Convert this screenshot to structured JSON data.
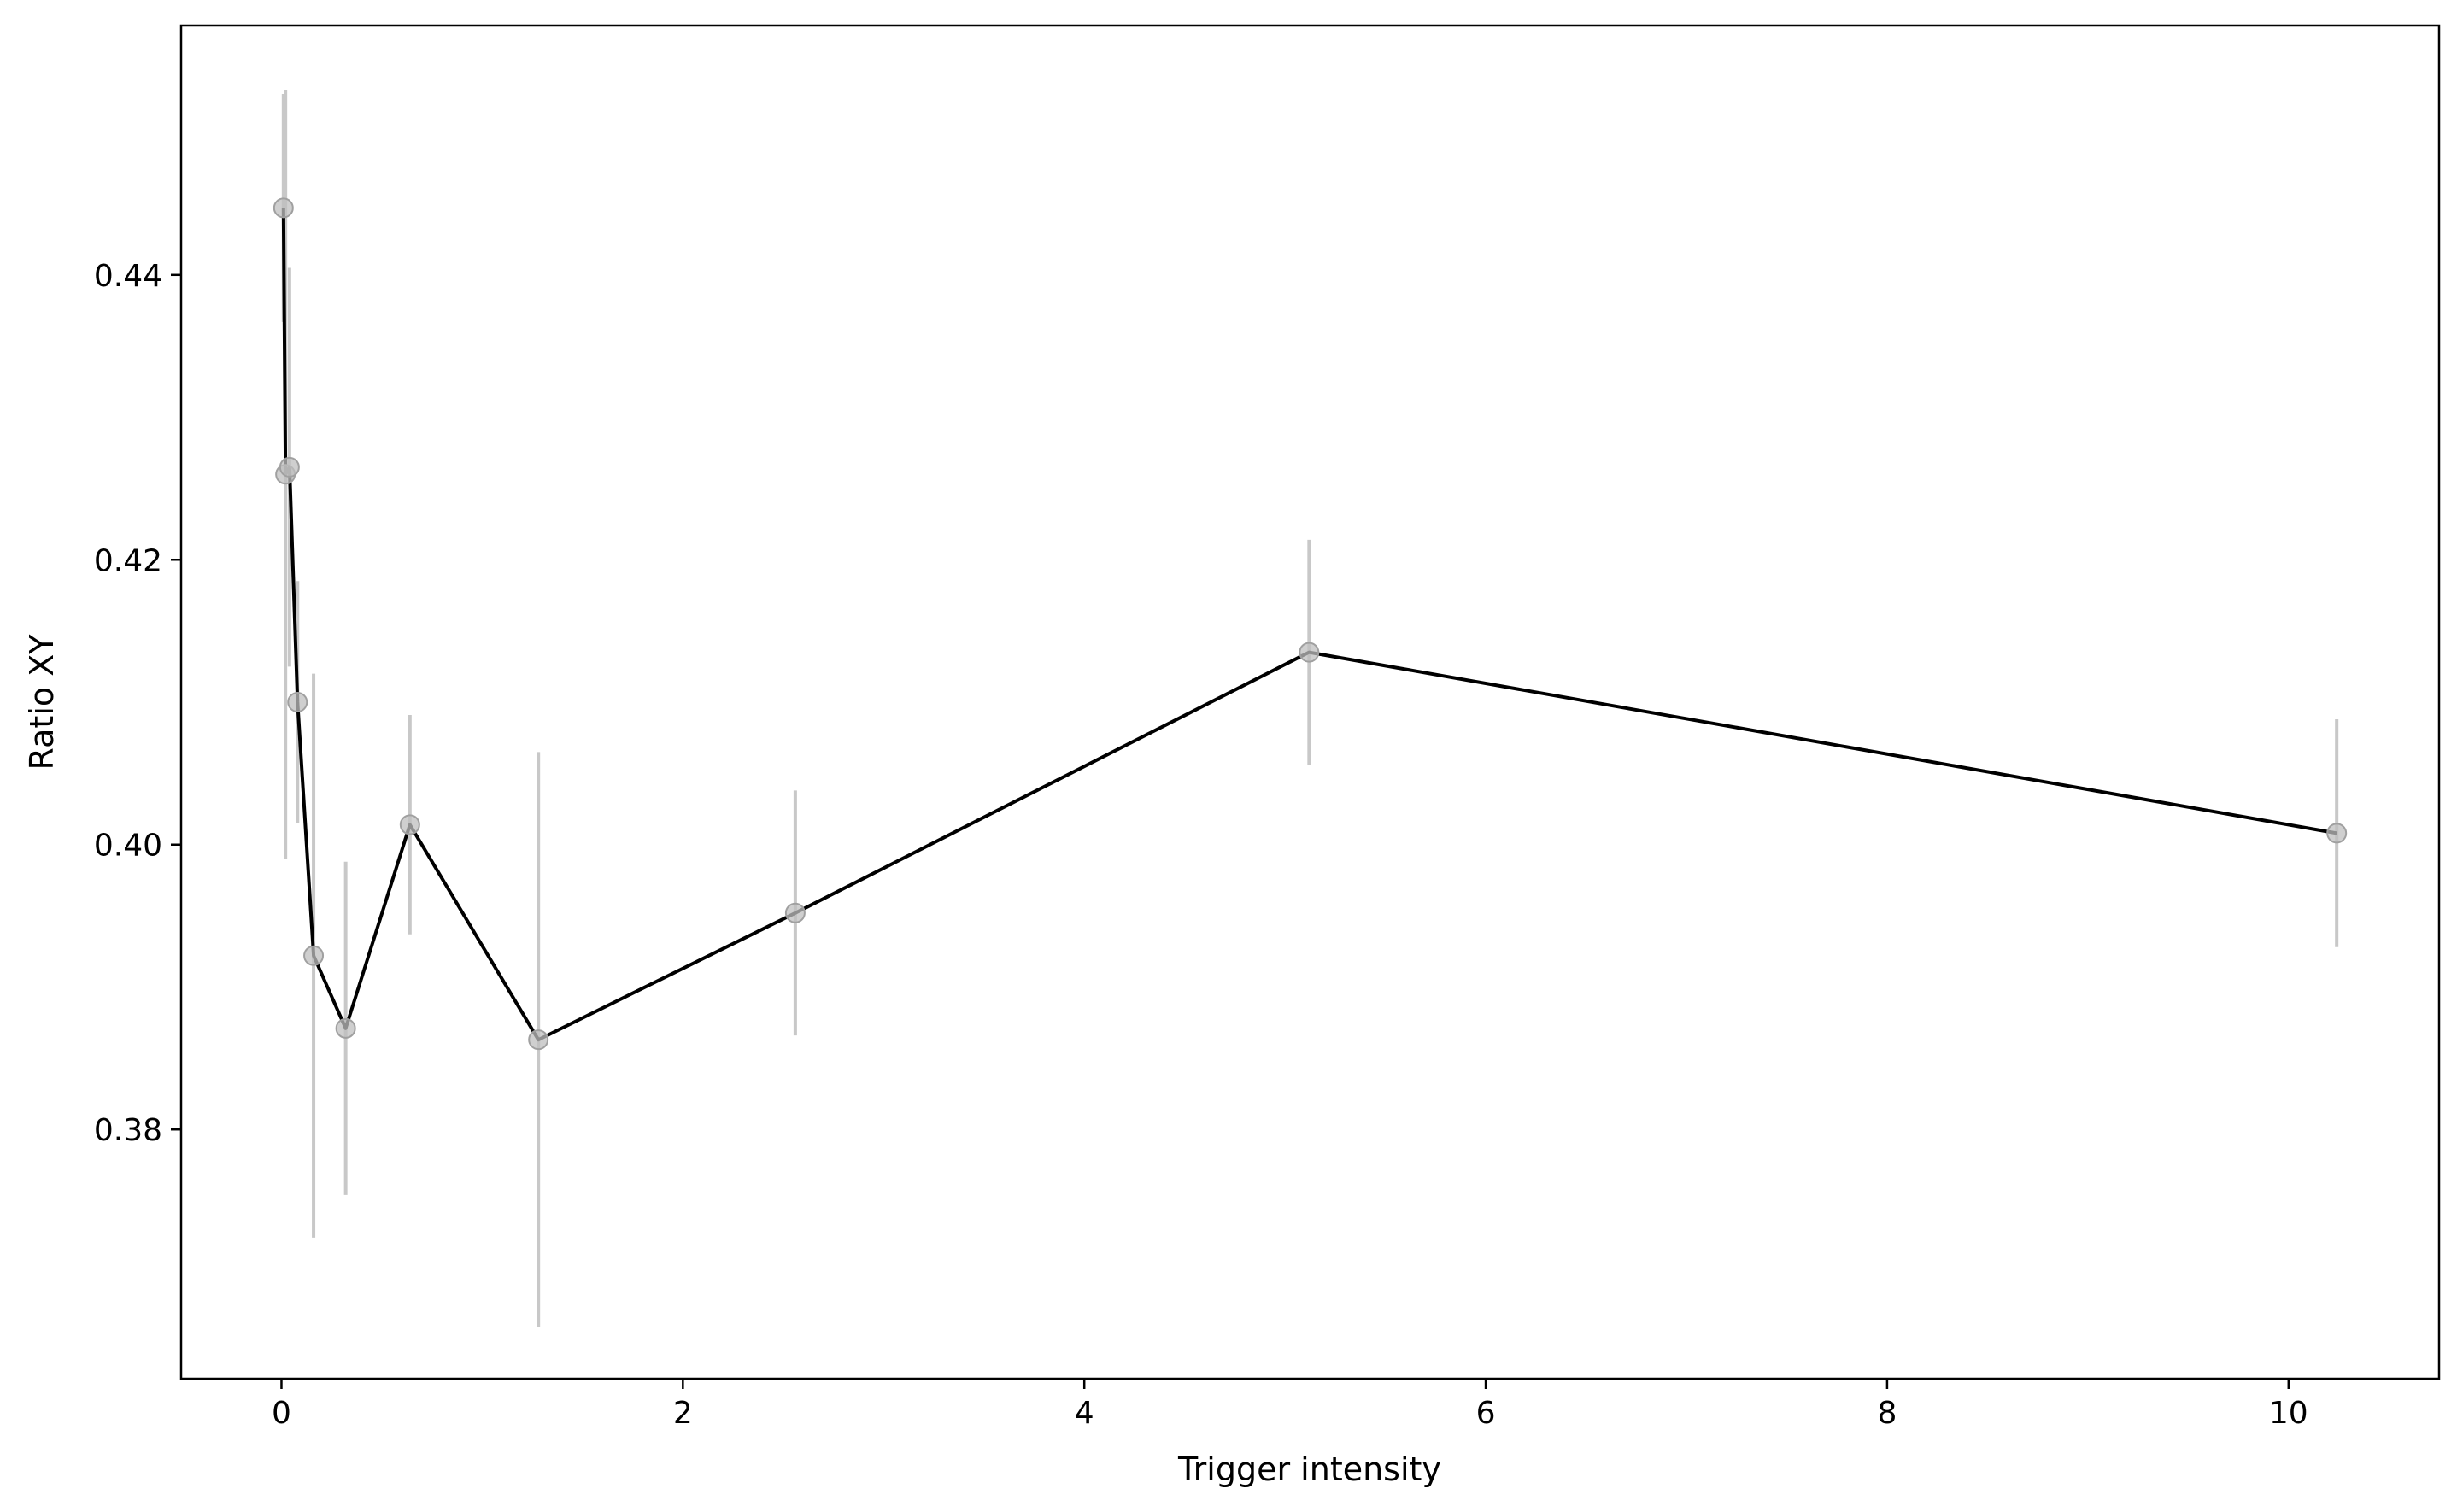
{
  "chart_data": {
    "type": "line",
    "title": "",
    "xlabel": "Trigger intensity",
    "ylabel": "Ratio XY",
    "xlim": [
      -0.5,
      10.75
    ],
    "ylim": [
      0.3625,
      0.4575
    ],
    "xticks": [
      0,
      2,
      4,
      6,
      8,
      10
    ],
    "yticks": [
      0.38,
      0.4,
      0.42,
      0.44
    ],
    "xtick_labels": [
      "0",
      "2",
      "4",
      "6",
      "8",
      "10"
    ],
    "ytick_labels": [
      "0.38",
      "0.40",
      "0.42",
      "0.44"
    ],
    "grid": false,
    "legend": "none",
    "line_color": "#000000",
    "marker_color": "#bfbfbf",
    "errorbar_color": "#c8c8c8",
    "series": [
      {
        "x": [
          0.01,
          0.02,
          0.04,
          0.08,
          0.16,
          0.32,
          0.64,
          1.28,
          2.56,
          5.12,
          10.24
        ],
        "y": [
          0.4447,
          0.426,
          0.4265,
          0.41,
          0.3922,
          0.3871,
          0.4014,
          0.3863,
          0.3952,
          0.4135,
          0.4008
        ],
        "err": [
          0.008,
          0.027,
          0.014,
          0.0085,
          0.0198,
          0.0117,
          0.0077,
          0.0202,
          0.0086,
          0.0079,
          0.008
        ]
      }
    ]
  }
}
